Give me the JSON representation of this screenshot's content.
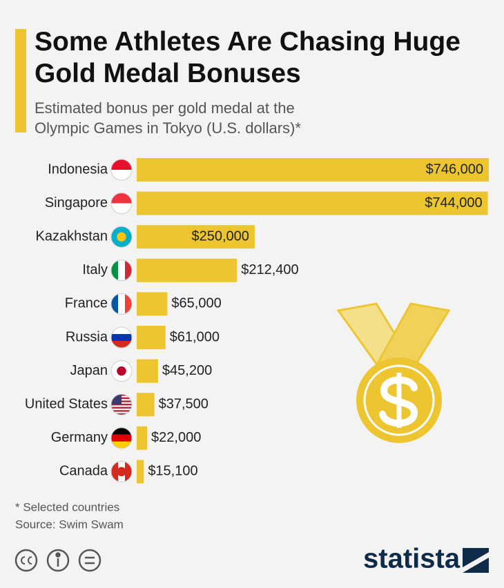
{
  "chart_data": {
    "type": "bar",
    "title": "Some Athletes Are Chasing Huge Gold Medal Bonuses",
    "subtitle": "Estimated bonus per gold medal at the Olympic Games in Tokyo (U.S. dollars)*",
    "categories": [
      "Indonesia",
      "Singapore",
      "Kazakhstan",
      "Italy",
      "France",
      "Russia",
      "Japan",
      "United States",
      "Germany",
      "Canada"
    ],
    "values": [
      746000,
      744000,
      250000,
      212400,
      65000,
      61000,
      45200,
      37500,
      22000,
      15100
    ],
    "value_labels": [
      "$746,000",
      "$744,000",
      "$250,000",
      "$212,400",
      "$65,000",
      "$61,000",
      "$45,200",
      "$37,500",
      "$22,000",
      "$15,100"
    ],
    "color": "#edc531",
    "footnote": "* Selected countries",
    "source": "Source: Swim Swam",
    "brand": "statista"
  }
}
